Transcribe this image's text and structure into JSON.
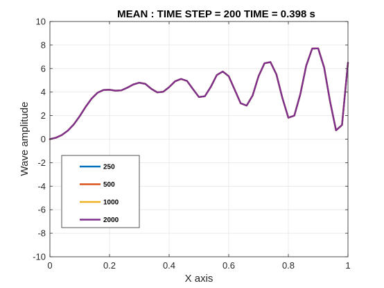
{
  "chart_data": {
    "type": "line",
    "title": "MEAN :   TIME STEP = 200   TIME = 0.398 s",
    "xlabel": "X axis",
    "ylabel": "Wave amplitude",
    "xlim": [
      0,
      1
    ],
    "ylim": [
      -10,
      10
    ],
    "xticks": [
      "0",
      "0.2",
      "0.4",
      "0.6",
      "0.8",
      "1"
    ],
    "xtick_values": [
      0,
      0.2,
      0.4,
      0.6,
      0.8,
      1
    ],
    "yticks": [
      "-10",
      "-8",
      "-6",
      "-4",
      "-2",
      "0",
      "2",
      "4",
      "6",
      "8",
      "10"
    ],
    "ytick_values": [
      -10,
      -8,
      -6,
      -4,
      -2,
      0,
      2,
      4,
      6,
      8,
      10
    ],
    "grid": true,
    "legend_position": "bottom-left",
    "x": [
      0,
      0.02,
      0.04,
      0.06,
      0.08,
      0.1,
      0.12,
      0.14,
      0.16,
      0.18,
      0.2,
      0.22,
      0.24,
      0.26,
      0.28,
      0.3,
      0.32,
      0.34,
      0.36,
      0.38,
      0.4,
      0.42,
      0.44,
      0.46,
      0.48,
      0.5,
      0.52,
      0.54,
      0.56,
      0.58,
      0.6,
      0.62,
      0.64,
      0.66,
      0.68,
      0.7,
      0.72,
      0.74,
      0.76,
      0.78,
      0.8,
      0.82,
      0.84,
      0.86,
      0.88,
      0.9,
      0.92,
      0.94,
      0.96,
      0.98,
      1.0
    ],
    "series": [
      {
        "name": "250",
        "color": "#0072BD",
        "values": [
          0,
          0.12,
          0.35,
          0.72,
          1.25,
          1.95,
          2.75,
          3.45,
          3.95,
          4.18,
          4.2,
          4.12,
          4.15,
          4.38,
          4.65,
          4.8,
          4.7,
          4.28,
          3.98,
          4.02,
          4.42,
          4.92,
          5.12,
          4.95,
          4.25,
          3.58,
          3.65,
          4.45,
          5.45,
          5.75,
          5.35,
          4.2,
          3.05,
          2.85,
          3.7,
          5.35,
          6.45,
          6.55,
          5.5,
          3.5,
          1.82,
          2.0,
          3.8,
          6.25,
          7.7,
          7.72,
          6.1,
          3.2,
          0.75,
          1.2,
          6.5
        ]
      },
      {
        "name": "500",
        "color": "#D95319",
        "values": [
          0,
          0.12,
          0.35,
          0.72,
          1.25,
          1.95,
          2.75,
          3.45,
          3.95,
          4.18,
          4.2,
          4.12,
          4.15,
          4.38,
          4.65,
          4.8,
          4.7,
          4.28,
          3.98,
          4.02,
          4.42,
          4.92,
          5.12,
          4.95,
          4.25,
          3.58,
          3.65,
          4.45,
          5.45,
          5.75,
          5.35,
          4.2,
          3.05,
          2.85,
          3.7,
          5.35,
          6.45,
          6.55,
          5.5,
          3.5,
          1.82,
          2.0,
          3.8,
          6.25,
          7.7,
          7.72,
          6.1,
          3.2,
          0.75,
          1.2,
          6.5
        ]
      },
      {
        "name": "1000",
        "color": "#EDB120",
        "values": [
          0,
          0.12,
          0.35,
          0.72,
          1.25,
          1.95,
          2.75,
          3.45,
          3.95,
          4.18,
          4.2,
          4.12,
          4.15,
          4.38,
          4.65,
          4.8,
          4.7,
          4.28,
          3.98,
          4.02,
          4.42,
          4.92,
          5.12,
          4.95,
          4.25,
          3.58,
          3.65,
          4.45,
          5.45,
          5.75,
          5.35,
          4.2,
          3.05,
          2.85,
          3.7,
          5.35,
          6.45,
          6.55,
          5.5,
          3.5,
          1.82,
          2.0,
          3.8,
          6.25,
          7.7,
          7.72,
          6.1,
          3.2,
          0.75,
          1.2,
          6.5
        ]
      },
      {
        "name": "2000",
        "color": "#7E2F8E",
        "values": [
          0,
          0.12,
          0.35,
          0.72,
          1.25,
          1.95,
          2.75,
          3.45,
          3.95,
          4.18,
          4.2,
          4.12,
          4.15,
          4.38,
          4.65,
          4.8,
          4.7,
          4.28,
          3.98,
          4.02,
          4.42,
          4.92,
          5.12,
          4.95,
          4.25,
          3.58,
          3.65,
          4.45,
          5.45,
          5.75,
          5.35,
          4.2,
          3.05,
          2.85,
          3.7,
          5.35,
          6.45,
          6.55,
          5.5,
          3.5,
          1.82,
          2.0,
          3.8,
          6.25,
          7.7,
          7.72,
          6.1,
          3.2,
          0.75,
          1.2,
          6.5
        ]
      }
    ]
  }
}
